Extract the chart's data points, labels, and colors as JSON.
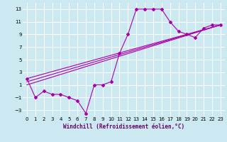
{
  "background_color": "#cce8f0",
  "grid_color": "#ffffff",
  "line_color": "#aa00aa",
  "xlim": [
    -0.5,
    23.5
  ],
  "ylim": [
    -4,
    14
  ],
  "xticks": [
    0,
    1,
    2,
    3,
    4,
    5,
    6,
    7,
    8,
    9,
    10,
    11,
    12,
    13,
    14,
    15,
    16,
    17,
    18,
    19,
    20,
    21,
    22,
    23
  ],
  "yticks": [
    -3,
    -1,
    1,
    3,
    5,
    7,
    9,
    11,
    13
  ],
  "xlabel": "Windchill (Refroidissement éolien,°C)",
  "line1_x": [
    0,
    1,
    2,
    3,
    4,
    5,
    6,
    7,
    8,
    9,
    10,
    11,
    12,
    13,
    14,
    15,
    16,
    17,
    18,
    19,
    20,
    21,
    22,
    23
  ],
  "line1_y": [
    2,
    -1,
    0,
    -0.5,
    -0.5,
    -1,
    -1.5,
    -3.5,
    1,
    1,
    1.5,
    6,
    9,
    13,
    13,
    13,
    13,
    11,
    9.5,
    9,
    8.5,
    10,
    10.5,
    10.5
  ],
  "line2_x": [
    0,
    23
  ],
  "line2_y": [
    2,
    10.5
  ],
  "line3_x": [
    0,
    23
  ],
  "line3_y": [
    1.5,
    10.5
  ],
  "line4_x": [
    0,
    23
  ],
  "line4_y": [
    1,
    10.5
  ]
}
